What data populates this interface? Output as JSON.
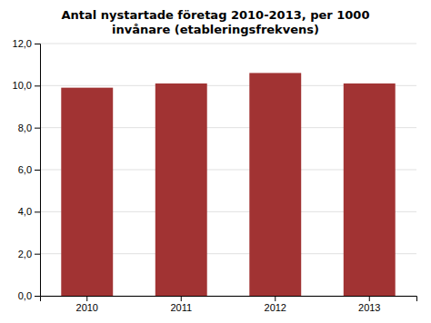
{
  "chart_data": {
    "type": "bar",
    "title": "Antal nystartade företag 2010-2013, per 1000\ninvånare (etableringsfrekvens)",
    "categories": [
      "2010",
      "2011",
      "2012",
      "2013"
    ],
    "values": [
      9.9,
      10.1,
      10.6,
      10.1
    ],
    "color": "#A13333",
    "ylim": [
      0,
      12
    ],
    "yticks": [
      {
        "value": 0.0,
        "label": "0,0"
      },
      {
        "value": 2.0,
        "label": "2,0"
      },
      {
        "value": 4.0,
        "label": "4,0"
      },
      {
        "value": 6.0,
        "label": "6,0"
      },
      {
        "value": 8.0,
        "label": "8,0"
      },
      {
        "value": 10.0,
        "label": "10,0"
      },
      {
        "value": 12.0,
        "label": "12,0"
      }
    ],
    "grid": true
  }
}
